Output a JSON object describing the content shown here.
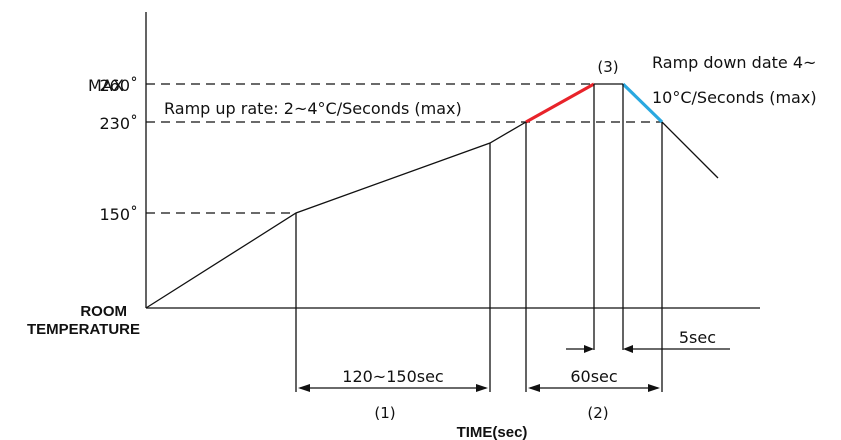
{
  "y_labels": {
    "max_word": "MAX",
    "t260": "260˚",
    "t230": "230˚",
    "t150": "150˚",
    "room_line1": "ROOM",
    "room_line2": "TEMPERATURE"
  },
  "annotations": {
    "ramp_up": "Ramp up rate: 2~4°C/Seconds (max)",
    "ramp_down_line1": "Ramp down date 4~",
    "ramp_down_line2": "10°C/Seconds (max)",
    "zone3": "(3)"
  },
  "intervals": {
    "preheat": "120~150sec",
    "reflow": "60sec",
    "peak": "5sec",
    "zone1": "(1)",
    "zone2": "(2)"
  },
  "x_axis_label": "TIME(sec)",
  "colors": {
    "ramp_up_segment": "#e8232a",
    "ramp_down_segment": "#29a8e0",
    "line": "#111111"
  }
}
